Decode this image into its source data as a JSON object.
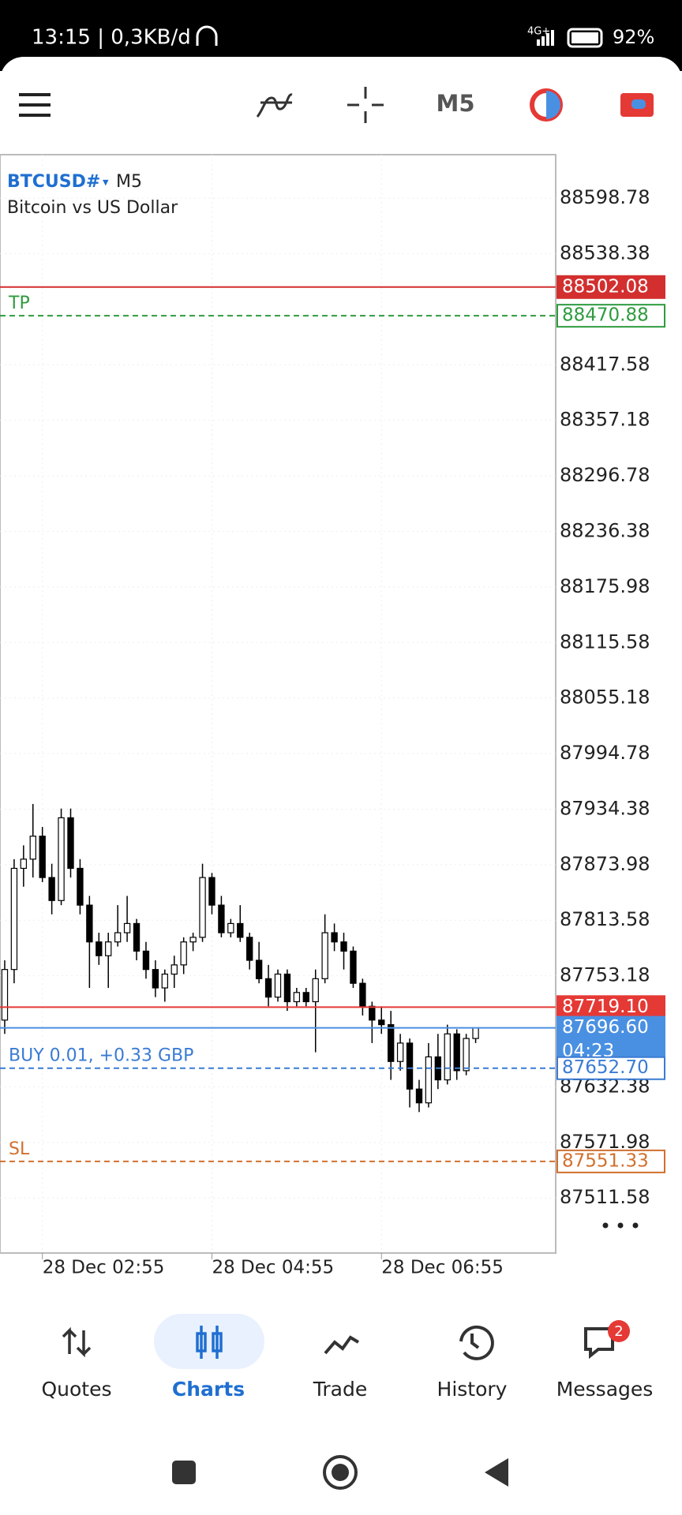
{
  "status_bar": {
    "time": "13:15 | 0,3KB/d",
    "network": "4G+",
    "battery": "92%"
  },
  "toolbar": {
    "timeframe": "M5"
  },
  "chart": {
    "type": "candlestick",
    "symbol": "BTCUSD#",
    "timeframe": "M5",
    "description": "Bitcoin vs US Dollar",
    "ylim": [
      87451.7,
      88646.05
    ],
    "xlim": [
      -0.5,
      58.5
    ],
    "yticks": [
      88598.78,
      88538.38,
      88417.58,
      88357.18,
      88296.78,
      88236.38,
      88175.98,
      88115.58,
      88055.18,
      87994.78,
      87934.38,
      87873.98,
      87813.58,
      87753.18,
      87632.38,
      87571.98,
      87511.58
    ],
    "xticks": [
      {
        "value": 4,
        "label": "28 Dec 02:55"
      },
      {
        "value": 22,
        "label": "28 Dec 04:55"
      },
      {
        "value": 40,
        "label": "28 Dec 06:55"
      }
    ],
    "open": [
      87705,
      87760,
      87870,
      87880,
      87905,
      87860,
      87835,
      87925,
      87870,
      87830,
      87790,
      87775,
      87790,
      87800,
      87810,
      87780,
      87760,
      87740,
      87755,
      87765,
      87790,
      87795,
      87860,
      87830,
      87800,
      87810,
      87795,
      87770,
      87750,
      87730,
      87755,
      87725,
      87735,
      87725,
      87750,
      87800,
      87790,
      87780,
      87745,
      87720,
      87705,
      87700,
      87660,
      87680,
      87630,
      87615,
      87665,
      87640,
      87690,
      87650,
      87685
    ],
    "high": [
      87770,
      87880,
      87895,
      87940,
      87915,
      87875,
      87935,
      87935,
      87880,
      87840,
      87800,
      87800,
      87830,
      87840,
      87815,
      87790,
      87770,
      87760,
      87775,
      87795,
      87800,
      87875,
      87865,
      87840,
      87815,
      87830,
      87800,
      87790,
      87765,
      87760,
      87760,
      87740,
      87740,
      87760,
      87820,
      87810,
      87800,
      87785,
      87750,
      87725,
      87720,
      87715,
      87690,
      87685,
      87640,
      87680,
      87690,
      87700,
      87695,
      87690,
      87697
    ],
    "low": [
      87690,
      87745,
      87850,
      87860,
      87855,
      87820,
      87830,
      87860,
      87820,
      87740,
      87765,
      87740,
      87785,
      87790,
      87770,
      87750,
      87730,
      87725,
      87740,
      87755,
      87780,
      87790,
      87820,
      87795,
      87795,
      87790,
      87760,
      87745,
      87720,
      87725,
      87715,
      87720,
      87720,
      87670,
      87745,
      87780,
      87760,
      87740,
      87710,
      87680,
      87690,
      87640,
      87650,
      87610,
      87605,
      87610,
      87630,
      87635,
      87640,
      87645,
      87680
    ],
    "close": [
      87760,
      87870,
      87880,
      87905,
      87860,
      87835,
      87925,
      87870,
      87830,
      87790,
      87775,
      87790,
      87800,
      87810,
      87780,
      87760,
      87740,
      87755,
      87765,
      87790,
      87795,
      87860,
      87830,
      87800,
      87810,
      87795,
      87770,
      87750,
      87730,
      87755,
      87725,
      87735,
      87725,
      87750,
      87800,
      87790,
      87780,
      87745,
      87720,
      87705,
      87700,
      87660,
      87680,
      87630,
      87615,
      87665,
      87640,
      87690,
      87650,
      87685,
      87696.6
    ],
    "levels": [
      {
        "price": {
          "value": 88502.08,
          "label": "88502.08"
        },
        "color": "#d32f2f",
        "style": "solid",
        "box": "fill"
      },
      {
        "text": "TP",
        "price": {
          "value": 88470.88,
          "label": "88470.88"
        },
        "color": "#2e9b3e",
        "style": "dashed",
        "box": "outline"
      },
      {
        "price": {
          "value": 87719.1,
          "label": "87719.10"
        },
        "color": "#e53935",
        "style": "solid",
        "box": "fill"
      },
      {
        "price": {
          "value": 87696.6,
          "label": "87696.60"
        },
        "countdown": "04:23",
        "color": "#4a90e2",
        "style": "solid",
        "box": "fill"
      },
      {
        "text": "BUY 0.01,  +0.33 GBP",
        "price": {
          "value": 87652.7,
          "label": "87652.70"
        },
        "color": "#3a7bd5",
        "style": "dashed",
        "box": "outline"
      },
      {
        "text": "SL",
        "price": {
          "value": 87551.33,
          "label": "87551.33"
        },
        "color": "#d2702e",
        "style": "dashed",
        "box": "outline"
      }
    ]
  },
  "nav": {
    "tabs": [
      {
        "label": "Quotes"
      },
      {
        "label": "Charts",
        "active": true
      },
      {
        "label": "Trade"
      },
      {
        "label": "History"
      },
      {
        "label": "Messages",
        "badge": "2"
      }
    ]
  }
}
